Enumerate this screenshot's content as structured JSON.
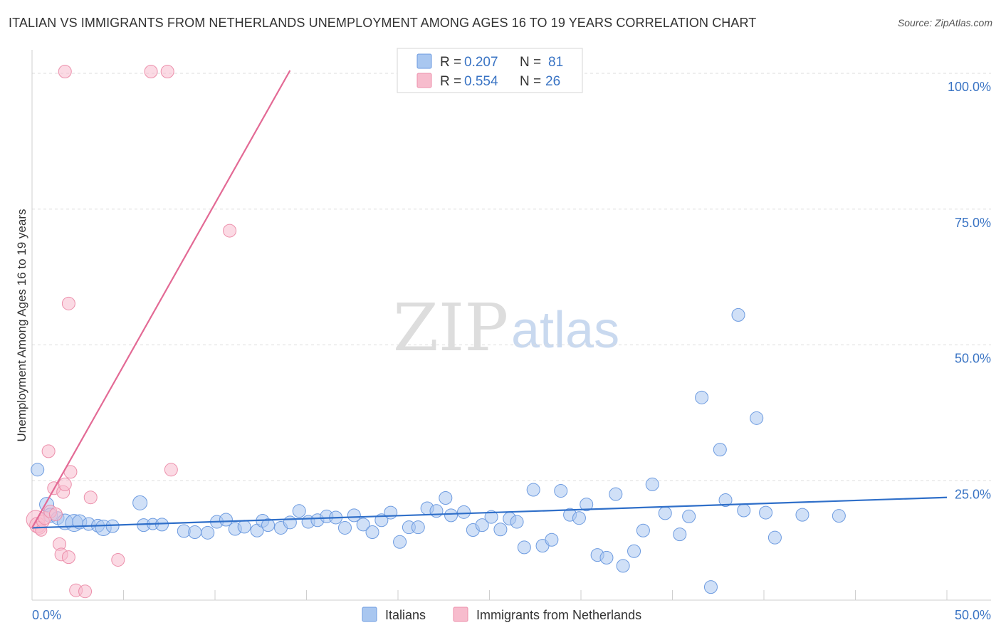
{
  "chart_title": "ITALIAN VS IMMIGRANTS FROM NETHERLANDS UNEMPLOYMENT AMONG AGES 16 TO 19 YEARS CORRELATION CHART",
  "source": "Source: ZipAtlas.com",
  "watermark": {
    "zip": "ZIP",
    "atlas": "atlas"
  },
  "colors": {
    "italians_fill": "#a9c7f0",
    "italians_stroke": "#6d9be0",
    "italians_line": "#2f6fc9",
    "neth_fill": "#f7bccd",
    "neth_stroke": "#ec8fab",
    "neth_line": "#e36a95",
    "grid": "#dcdcdc",
    "tick": "#3a74c4"
  },
  "legend": {
    "rows": [
      {
        "r_label": "R = ",
        "r_value": "0.207",
        "n_label": "N = ",
        "n_value": "81"
      },
      {
        "r_label": "R = ",
        "r_value": "0.554",
        "n_label": "N = ",
        "n_value": "26"
      }
    ]
  },
  "chart_data": {
    "type": "scatter",
    "title": "ITALIAN VS IMMIGRANTS FROM NETHERLANDS UNEMPLOYMENT AMONG AGES 16 TO 19 YEARS CORRELATION CHART",
    "xlabel": "",
    "ylabel": "Unemployment Among Ages 16 to 19 years",
    "xlim": [
      0,
      50
    ],
    "ylim": [
      0,
      102
    ],
    "x_tick_labels": [
      "0.0%",
      "50.0%"
    ],
    "y_ticks": [
      25,
      50,
      75,
      100
    ],
    "y_tick_labels": [
      "25.0%",
      "50.0%",
      "75.0%",
      "100.0%"
    ],
    "legend_position": "bottom",
    "series": [
      {
        "name": "Italians",
        "trend": {
          "x": [
            0,
            50
          ],
          "y": [
            15.8,
            21.4
          ]
        },
        "points": [
          [
            0.3,
            26.5,
            9
          ],
          [
            0.8,
            20.1,
            10
          ],
          [
            1.0,
            18.1,
            10
          ],
          [
            1.4,
            17.6,
            9
          ],
          [
            1.8,
            16.9,
            11
          ],
          [
            2.3,
            16.7,
            12
          ],
          [
            2.6,
            16.9,
            10
          ],
          [
            3.1,
            16.5,
            9
          ],
          [
            3.6,
            16.2,
            9
          ],
          [
            3.9,
            15.8,
            11
          ],
          [
            4.4,
            16.1,
            9
          ],
          [
            5.9,
            20.4,
            10
          ],
          [
            6.1,
            16.3,
            9
          ],
          [
            6.6,
            16.5,
            8
          ],
          [
            7.1,
            16.4,
            9
          ],
          [
            8.3,
            15.2,
            9
          ],
          [
            8.9,
            15.0,
            9
          ],
          [
            9.6,
            14.9,
            9
          ],
          [
            10.1,
            16.9,
            9
          ],
          [
            10.6,
            17.3,
            9
          ],
          [
            11.1,
            15.6,
            9
          ],
          [
            11.6,
            16.0,
            9
          ],
          [
            12.3,
            15.3,
            9
          ],
          [
            12.6,
            17.1,
            9
          ],
          [
            12.9,
            16.3,
            9
          ],
          [
            13.6,
            15.8,
            9
          ],
          [
            14.1,
            16.8,
            9
          ],
          [
            14.6,
            18.9,
            9
          ],
          [
            15.1,
            16.9,
            9
          ],
          [
            15.6,
            17.2,
            9
          ],
          [
            16.1,
            17.9,
            9
          ],
          [
            16.6,
            17.7,
            9
          ],
          [
            17.1,
            15.8,
            9
          ],
          [
            17.6,
            18.1,
            9
          ],
          [
            18.1,
            16.4,
            9
          ],
          [
            18.6,
            15.0,
            9
          ],
          [
            19.1,
            17.2,
            9
          ],
          [
            19.6,
            18.6,
            9
          ],
          [
            20.1,
            13.2,
            9
          ],
          [
            20.6,
            15.9,
            9
          ],
          [
            21.1,
            15.9,
            9
          ],
          [
            21.6,
            19.4,
            9
          ],
          [
            22.1,
            18.9,
            9
          ],
          [
            22.6,
            21.3,
            9
          ],
          [
            22.9,
            18.1,
            9
          ],
          [
            23.6,
            18.7,
            9
          ],
          [
            24.1,
            15.4,
            9
          ],
          [
            24.6,
            16.3,
            9
          ],
          [
            25.1,
            17.8,
            9
          ],
          [
            25.6,
            15.5,
            9
          ],
          [
            26.1,
            17.5,
            9
          ],
          [
            26.5,
            16.9,
            9
          ],
          [
            26.9,
            12.2,
            9
          ],
          [
            27.4,
            22.8,
            9
          ],
          [
            27.9,
            12.5,
            9
          ],
          [
            28.4,
            13.6,
            9
          ],
          [
            28.9,
            22.6,
            9
          ],
          [
            29.4,
            18.2,
            9
          ],
          [
            29.9,
            17.6,
            9
          ],
          [
            30.3,
            20.1,
            9
          ],
          [
            30.9,
            10.8,
            9
          ],
          [
            31.4,
            10.3,
            9
          ],
          [
            31.9,
            22.0,
            9
          ],
          [
            32.3,
            8.8,
            9
          ],
          [
            32.9,
            11.5,
            9
          ],
          [
            33.4,
            15.3,
            9
          ],
          [
            33.9,
            23.8,
            9
          ],
          [
            34.6,
            18.5,
            9
          ],
          [
            35.4,
            14.6,
            9
          ],
          [
            35.9,
            17.9,
            9
          ],
          [
            36.6,
            39.8,
            9
          ],
          [
            37.1,
            4.9,
            9
          ],
          [
            37.6,
            30.2,
            9
          ],
          [
            37.9,
            20.9,
            9
          ],
          [
            38.6,
            55.0,
            9
          ],
          [
            38.9,
            19.0,
            9
          ],
          [
            39.6,
            36.0,
            9
          ],
          [
            40.1,
            18.6,
            9
          ],
          [
            40.6,
            14.0,
            9
          ],
          [
            42.1,
            18.2,
            9
          ],
          [
            44.1,
            18.0,
            9
          ]
        ]
      },
      {
        "name": "Immigrants from Netherlands",
        "trend": {
          "x": [
            0,
            14.1
          ],
          "y": [
            15.8,
            100
          ]
        },
        "points": [
          [
            0.2,
            17.3,
            13
          ],
          [
            0.3,
            16.3,
            11
          ],
          [
            0.4,
            15.8,
            9
          ],
          [
            0.5,
            15.3,
            8
          ],
          [
            0.6,
            17.0,
            9
          ],
          [
            0.7,
            17.6,
            9
          ],
          [
            0.9,
            29.9,
            9
          ],
          [
            1.0,
            18.8,
            9
          ],
          [
            1.2,
            23.1,
            9
          ],
          [
            1.3,
            18.3,
            9
          ],
          [
            1.5,
            12.8,
            9
          ],
          [
            1.6,
            10.9,
            9
          ],
          [
            1.7,
            22.4,
            9
          ],
          [
            1.8,
            23.8,
            9
          ],
          [
            1.8,
            99.8,
            9
          ],
          [
            2.0,
            57.1,
            9
          ],
          [
            2.0,
            10.4,
            9
          ],
          [
            2.1,
            26.1,
            9
          ],
          [
            2.4,
            4.3,
            9
          ],
          [
            2.9,
            4.1,
            9
          ],
          [
            3.2,
            21.4,
            9
          ],
          [
            4.7,
            9.9,
            9
          ],
          [
            6.5,
            99.8,
            9
          ],
          [
            7.4,
            99.8,
            9
          ],
          [
            7.6,
            26.5,
            9
          ],
          [
            10.8,
            70.5,
            9
          ]
        ]
      }
    ]
  },
  "bottom_legend": {
    "italians": "Italians",
    "netherlands": "Immigrants from Netherlands"
  }
}
